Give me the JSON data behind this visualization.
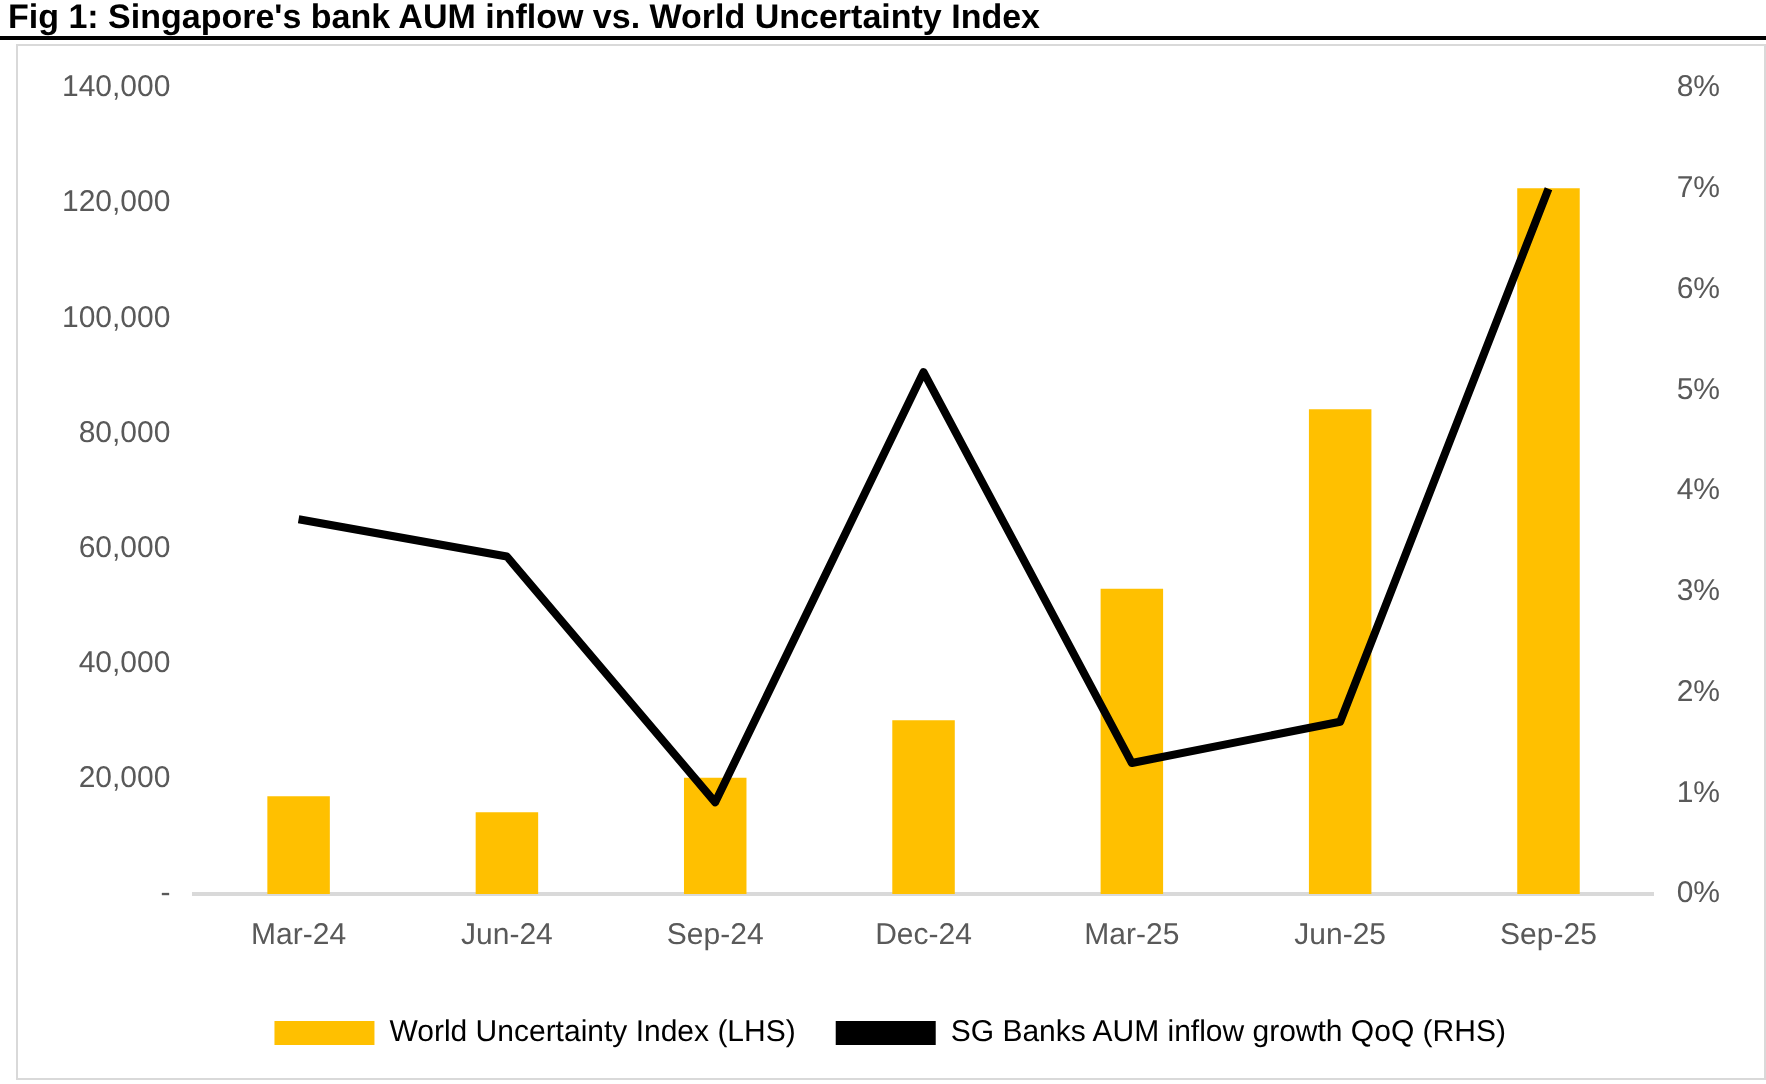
{
  "chart_data": {
    "type": "bar",
    "title": "Fig 1: Singapore's bank AUM inflow vs. World Uncertainty Index",
    "categories": [
      "Mar-24",
      "Jun-24",
      "Sep-24",
      "Dec-24",
      "Mar-25",
      "Jun-25",
      "Sep-25"
    ],
    "series": [
      {
        "name": "World Uncertainty Index (LHS)",
        "color": "#ffc000",
        "values": [
          17000,
          14200,
          20200,
          30200,
          53000,
          84200,
          122600
        ]
      },
      {
        "name": "SG Banks AUM inflow growth QoQ (RHS)",
        "type": "line",
        "axis": "y2",
        "color": "#000000",
        "values": [
          3.72,
          3.35,
          0.91,
          5.18,
          1.3,
          1.71,
          7.0
        ]
      }
    ],
    "ylim": [
      0,
      140000
    ],
    "yticks": [
      {
        "value": 0,
        "label": "-"
      },
      {
        "value": 20000,
        "label": "20,000"
      },
      {
        "value": 40000,
        "label": "40,000"
      },
      {
        "value": 60000,
        "label": "60,000"
      },
      {
        "value": 80000,
        "label": "80,000"
      },
      {
        "value": 100000,
        "label": "100,000"
      },
      {
        "value": 120000,
        "label": "120,000"
      },
      {
        "value": 140000,
        "label": "140,000"
      }
    ],
    "y2lim": [
      0,
      8
    ],
    "y2ticks": [
      {
        "value": 0,
        "label": "0%"
      },
      {
        "value": 1,
        "label": "1%"
      },
      {
        "value": 2,
        "label": "2%"
      },
      {
        "value": 3,
        "label": "3%"
      },
      {
        "value": 4,
        "label": "4%"
      },
      {
        "value": 5,
        "label": "5%"
      },
      {
        "value": 6,
        "label": "6%"
      },
      {
        "value": 7,
        "label": "7%"
      },
      {
        "value": 8,
        "label": "8%"
      }
    ],
    "grid": false,
    "legend": "bottom",
    "marker": "none"
  }
}
